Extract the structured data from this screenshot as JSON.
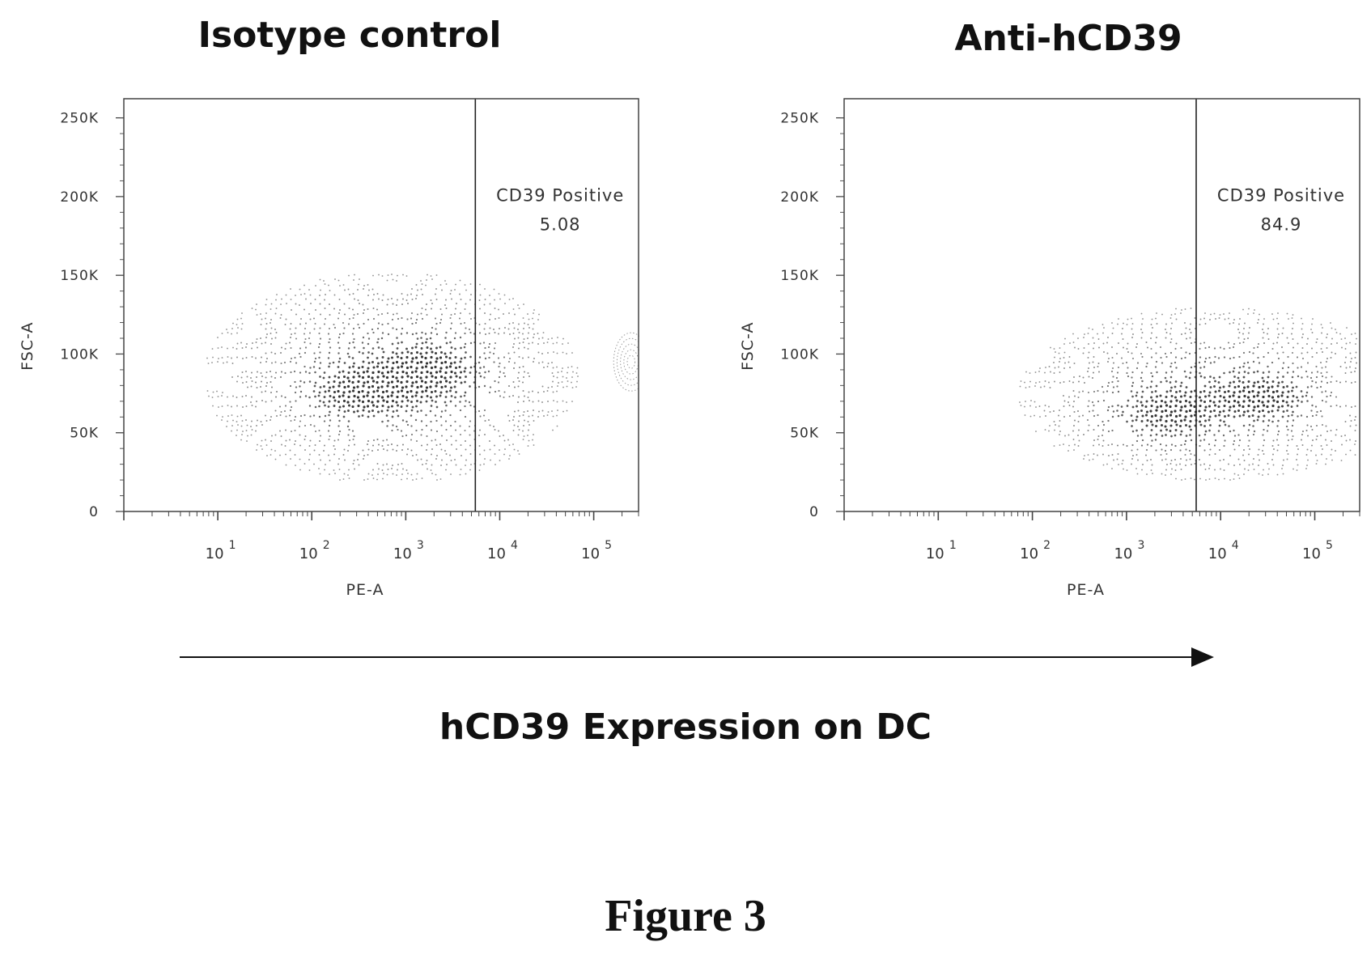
{
  "chart_data": [
    {
      "type": "contour",
      "title": "Isotype control",
      "xlabel": "PE-A",
      "ylabel": "FSC-A",
      "x_scale": "log",
      "xlim": [
        1,
        300000
      ],
      "x_ticks": [
        10,
        100,
        1000,
        10000,
        100000
      ],
      "x_tick_labels": [
        [
          "10",
          "1"
        ],
        [
          "10",
          "2"
        ],
        [
          "10",
          "3"
        ],
        [
          "10",
          "4"
        ],
        [
          "10",
          "5"
        ]
      ],
      "ylim": [
        0,
        262144
      ],
      "y_ticks": [
        0,
        50000,
        100000,
        150000,
        200000,
        250000
      ],
      "y_tick_labels": [
        "0",
        "50K",
        "100K",
        "150K",
        "200K",
        "250K"
      ],
      "gate": {
        "name": "CD39 Positive",
        "value": "5.08",
        "threshold": 5500
      },
      "populations": [
        {
          "x_center": 700,
          "y_center": 85000,
          "x_spread_decades": 0.8,
          "y_spread": 27000
        },
        {
          "x_center": 300,
          "y_center": 75000,
          "x_spread_decades": 0.35,
          "y_spread": 12000
        },
        {
          "x_center": 2000,
          "y_center": 90000,
          "x_spread_decades": 0.35,
          "y_spread": 14000
        }
      ],
      "edge_population": {
        "x_center": 250000,
        "y_center": 95000,
        "y_spread": 14000
      }
    },
    {
      "type": "contour",
      "title": "Anti-hCD39",
      "xlabel": "PE-A",
      "ylabel": "FSC-A",
      "x_scale": "log",
      "xlim": [
        1,
        300000
      ],
      "x_ticks": [
        10,
        100,
        1000,
        10000,
        100000
      ],
      "x_tick_labels": [
        [
          "10",
          "1"
        ],
        [
          "10",
          "2"
        ],
        [
          "10",
          "3"
        ],
        [
          "10",
          "4"
        ],
        [
          "10",
          "5"
        ]
      ],
      "ylim": [
        0,
        262144
      ],
      "y_ticks": [
        0,
        50000,
        100000,
        150000,
        200000,
        250000
      ],
      "y_tick_labels": [
        "0",
        "50K",
        "100K",
        "150K",
        "200K",
        "250K"
      ],
      "gate": {
        "name": "CD39 Positive",
        "value": "84.9",
        "threshold": 5500
      },
      "populations": [
        {
          "x_center": 9000,
          "y_center": 75000,
          "x_spread_decades": 0.85,
          "y_spread": 22000
        },
        {
          "x_center": 30000,
          "y_center": 72000,
          "x_spread_decades": 0.3,
          "y_spread": 10000
        },
        {
          "x_center": 2500,
          "y_center": 60000,
          "x_spread_decades": 0.4,
          "y_spread": 12000
        }
      ]
    }
  ],
  "arrow_caption": "hCD39 Expression on DC",
  "figure_label": "Figure 3"
}
